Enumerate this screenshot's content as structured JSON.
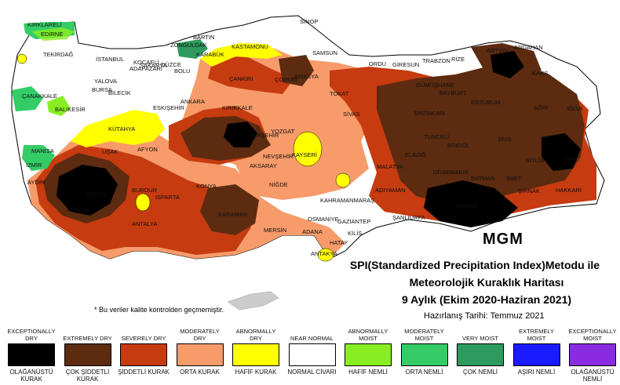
{
  "title": {
    "line1": "SPI(Standardized Precipitation Index)Metodu ile",
    "line2": "Meteorolojik Kuraklık Haritası",
    "line3": "9 Aylık (Ekim 2020-Haziran 2021)",
    "date": "Hazırlanış Tarihi: Temmuz 2021"
  },
  "note": "* Bu veriler kalite kontrolden geçmemiştir.",
  "logo": "MGM",
  "cities": [
    "KIRKLARELİ",
    "EDİRNE",
    "TEKİRDAĞ",
    "İSTANBUL",
    "ÇANAKKALE",
    "BALIKESİR",
    "BURSA",
    "YALOVA",
    "KOCAELİ",
    "SAKARYA",
    "ADAPAZARI",
    "DÜZCE",
    "BOLU",
    "BARTIN",
    "ZONGULDAK",
    "KARABÜK",
    "KASTAMONU",
    "SİNOP",
    "SAMSUN",
    "ORDU",
    "GİRESUN",
    "TRABZON",
    "RİZE",
    "ARTVİN",
    "ARDAHAN",
    "KARS",
    "IĞDIR",
    "AĞRI",
    "ERZURUM",
    "GÜMÜŞHANE",
    "BAYBURT",
    "ERZİNCAN",
    "TUNCELİ",
    "BİNGÖL",
    "MUŞ",
    "VAN",
    "BİTLİS",
    "SİİRT",
    "HAKKARİ",
    "ŞIRNAK",
    "BATMAN",
    "DİYARBAKIR",
    "MARDİN",
    "ELAZIĞ",
    "MALATYA",
    "ADIYAMAN",
    "ŞANLIURFA",
    "GAZİANTEP",
    "KİLİS",
    "HATAY",
    "ANTAKYA",
    "OSMANİYE",
    "ADANA",
    "MERSİN",
    "KARAMAN",
    "KONYA",
    "NİĞDE",
    "AKSARAY",
    "NEVŞEHİR",
    "KAYSERİ",
    "KIRŞEHİR",
    "KIRIKKALE",
    "ANKARA",
    "YOZGAT",
    "ÇORUM",
    "AMASYA",
    "TOKAT",
    "SİVAS",
    "ÇANKIRI",
    "ESKİŞEHİR",
    "BİLECİK",
    "KÜTAHYA",
    "AFYON",
    "UŞAK",
    "MANİSA",
    "İZMİR",
    "AYDIN",
    "MUĞLA",
    "DENİZLİ",
    "BURDUR",
    "ISPARTA",
    "ANTALYA",
    "KAHRAMANMARAŞ"
  ],
  "legend": [
    {
      "en": "EXCEPTIONALLY DRY",
      "tr": "OLAĞANÜSTÜ KURAK",
      "color": "#000000"
    },
    {
      "en": "EXTREMELY DRY",
      "tr": "ÇOK ŞİDDETLİ KURAK",
      "color": "#5c2b10"
    },
    {
      "en": "SEVERELY DRY",
      "tr": "ŞİDDETLİ KURAK",
      "color": "#c63b0f"
    },
    {
      "en": "MODERATELY DRY",
      "tr": "ORTA KURAK",
      "color": "#f79b6a"
    },
    {
      "en": "ABNORMALLY DRY",
      "tr": "HAFİF KURAK",
      "color": "#ffff00"
    },
    {
      "en": "NEAR NORMAL",
      "tr": "NORMAL CİVARI",
      "color": "#ffffff"
    },
    {
      "en": "ABNORMALLY MOIST",
      "tr": "HAFİF NEMLİ",
      "color": "#88ee22"
    },
    {
      "en": "MODERATELY MOIST",
      "tr": "ORTA NEMLİ",
      "color": "#33cc66"
    },
    {
      "en": "VERY MOIST",
      "tr": "ÇOK NEMLİ",
      "color": "#2e9b5e"
    },
    {
      "en": "EXTREMELY MOIST",
      "tr": "AŞIRI NEMLİ",
      "color": "#1a1aff"
    },
    {
      "en": "EXCEPTIONALLY MOIST",
      "tr": "OLAĞANÜSTÜ NEMLİ",
      "color": "#8a2be2"
    }
  ]
}
